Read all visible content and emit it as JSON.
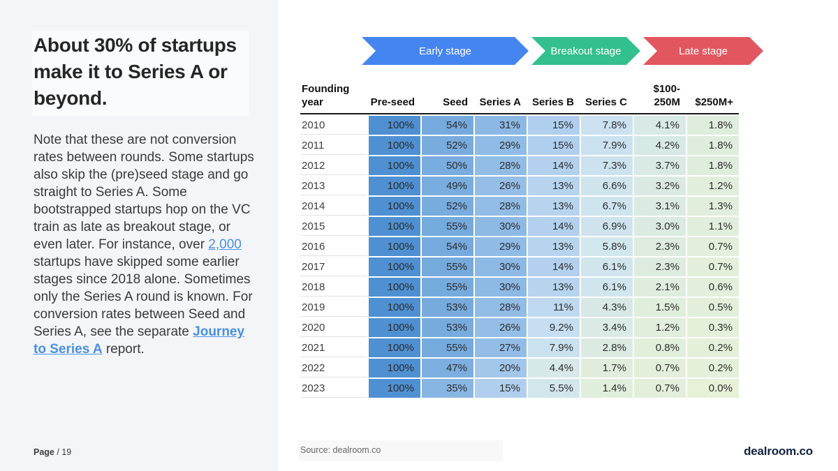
{
  "left_panel": {
    "title": "About 30% of startups make it to Series A or beyond.",
    "paragraph_parts": [
      {
        "text": "Note that these are not conversion rates between rounds. Some startups also skip the (pre)seed stage and go straight to Series A. Some bootstrapped startups hop on the VC train as late as breakout stage, or even later. For instance, over ",
        "link": false,
        "bold": false
      },
      {
        "text": "2,000",
        "link": true,
        "bold": false
      },
      {
        "text": " startups have skipped some earlier stages since 2018 alone. Sometimes only the Series A round is known. For conversion rates between Seed and Series A, see the separate ",
        "link": false,
        "bold": false
      },
      {
        "text": "Journey to Series A",
        "link": true,
        "bold": true
      },
      {
        "text": " report.",
        "link": false,
        "bold": false
      }
    ],
    "page_label": "Page",
    "page_suffix": " / 19"
  },
  "stages": [
    {
      "label": "Early stage",
      "color": "#4585f0"
    },
    {
      "label": "Breakout stage",
      "color": "#33bf8e"
    },
    {
      "label": "Late stage",
      "color": "#e2565f"
    }
  ],
  "table": {
    "header_col1": "Founding\nyear",
    "columns": [
      "Pre-seed",
      "Seed",
      "Series A",
      "Series B",
      "Series C",
      "$100-\n250M",
      "$250M+"
    ]
  },
  "chart_data": {
    "type": "heatmap",
    "title": "Share of startups reaching each funding stage by founding year",
    "row_label": "Founding year",
    "columns": [
      "Pre-seed",
      "Seed",
      "Series A",
      "Series B",
      "Series C",
      "$100-250M",
      "$250M+"
    ],
    "rows": [
      {
        "year": "2010",
        "values": [
          "100%",
          "54%",
          "31%",
          "15%",
          "7.8%",
          "4.1%",
          "1.8%"
        ]
      },
      {
        "year": "2011",
        "values": [
          "100%",
          "52%",
          "29%",
          "15%",
          "7.9%",
          "4.2%",
          "1.8%"
        ]
      },
      {
        "year": "2012",
        "values": [
          "100%",
          "50%",
          "28%",
          "14%",
          "7.3%",
          "3.7%",
          "1.8%"
        ]
      },
      {
        "year": "2013",
        "values": [
          "100%",
          "49%",
          "26%",
          "13%",
          "6.6%",
          "3.2%",
          "1.2%"
        ]
      },
      {
        "year": "2014",
        "values": [
          "100%",
          "52%",
          "28%",
          "13%",
          "6.7%",
          "3.1%",
          "1.3%"
        ]
      },
      {
        "year": "2015",
        "values": [
          "100%",
          "55%",
          "30%",
          "14%",
          "6.9%",
          "3.0%",
          "1.1%"
        ]
      },
      {
        "year": "2016",
        "values": [
          "100%",
          "54%",
          "29%",
          "13%",
          "5.8%",
          "2.3%",
          "0.7%"
        ]
      },
      {
        "year": "2017",
        "values": [
          "100%",
          "55%",
          "30%",
          "14%",
          "6.1%",
          "2.3%",
          "0.7%"
        ]
      },
      {
        "year": "2018",
        "values": [
          "100%",
          "55%",
          "30%",
          "13%",
          "6.1%",
          "2.1%",
          "0.6%"
        ]
      },
      {
        "year": "2019",
        "values": [
          "100%",
          "53%",
          "28%",
          "11%",
          "4.3%",
          "1.5%",
          "0.5%"
        ]
      },
      {
        "year": "2020",
        "values": [
          "100%",
          "53%",
          "26%",
          "9.2%",
          "3.4%",
          "1.2%",
          "0.3%"
        ]
      },
      {
        "year": "2021",
        "values": [
          "100%",
          "55%",
          "27%",
          "7.9%",
          "2.8%",
          "0.8%",
          "0.2%"
        ]
      },
      {
        "year": "2022",
        "values": [
          "100%",
          "47%",
          "20%",
          "4.4%",
          "1.7%",
          "0.7%",
          "0.2%"
        ]
      },
      {
        "year": "2023",
        "values": [
          "100%",
          "35%",
          "15%",
          "5.5%",
          "1.4%",
          "0.7%",
          "0.0%"
        ]
      }
    ]
  },
  "heatmap": {
    "high_color": "#4f90d2",
    "low_color": "#e6f1d8",
    "stops": [
      [
        0.0,
        "#e6f1d8"
      ],
      [
        0.08,
        "#e3efda"
      ],
      [
        0.14,
        "#dfeddd"
      ],
      [
        0.2,
        "#d8e9e6"
      ],
      [
        0.25,
        "#d1e5ee"
      ],
      [
        0.3,
        "#c8def1"
      ],
      [
        0.4,
        "#accdee"
      ],
      [
        0.55,
        "#8db9e5"
      ],
      [
        0.75,
        "#74a9dd"
      ],
      [
        1.0,
        "#4f90d2"
      ]
    ]
  },
  "footer": {
    "source": "Source: dealroom.co",
    "logo": "dealroom.co"
  }
}
